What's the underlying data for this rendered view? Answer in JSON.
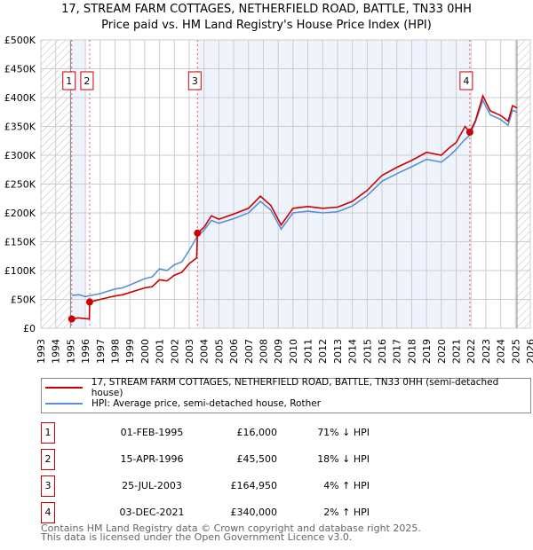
{
  "chart_data": {
    "type": "line",
    "title": "17, STREAM FARM COTTAGES, NETHERFIELD ROAD, BATTLE, TN33 0HH",
    "subtitle": "Price paid vs. HM Land Registry's House Price Index (HPI)",
    "xlim": [
      1993,
      2026
    ],
    "ylim": [
      0,
      500000
    ],
    "y_ticks": [
      0,
      50000,
      100000,
      150000,
      200000,
      250000,
      300000,
      350000,
      400000,
      450000,
      500000
    ],
    "y_tick_labels": [
      "£0",
      "£50K",
      "£100K",
      "£150K",
      "£200K",
      "£250K",
      "£300K",
      "£350K",
      "£400K",
      "£450K",
      "£500K"
    ],
    "x_ticks": [
      1993,
      1994,
      1995,
      1996,
      1997,
      1998,
      1999,
      2000,
      2001,
      2002,
      2003,
      2004,
      2005,
      2006,
      2007,
      2008,
      2009,
      2010,
      2011,
      2012,
      2013,
      2014,
      2015,
      2016,
      2017,
      2018,
      2019,
      2020,
      2021,
      2022,
      2023,
      2024,
      2025,
      2026
    ],
    "grid": true,
    "colors": {
      "property": "#cc0000",
      "hpi": "#5b8fd4",
      "shade": "#eef3fc"
    },
    "series": [
      {
        "name": "17, STREAM FARM COTTAGES, NETHERFIELD ROAD, BATTLE, TN33 0HH (semi-detached house)",
        "key": "property",
        "points": [
          [
            1995.08,
            16000
          ],
          [
            1995.5,
            18000
          ],
          [
            1996.27,
            16000
          ],
          [
            1996.29,
            45500
          ],
          [
            1997,
            50000
          ],
          [
            1998,
            56000
          ],
          [
            1998.5,
            58000
          ],
          [
            1999,
            62000
          ],
          [
            2000,
            70000
          ],
          [
            2000.5,
            72000
          ],
          [
            2001,
            84000
          ],
          [
            2001.5,
            82000
          ],
          [
            2002,
            92000
          ],
          [
            2002.5,
            97000
          ],
          [
            2003,
            112000
          ],
          [
            2003.5,
            122000
          ],
          [
            2003.56,
            164950
          ],
          [
            2004,
            175000
          ],
          [
            2004.5,
            195000
          ],
          [
            2005,
            189000
          ],
          [
            2006,
            198000
          ],
          [
            2007,
            208000
          ],
          [
            2007.8,
            229000
          ],
          [
            2008.5,
            213000
          ],
          [
            2009.2,
            179000
          ],
          [
            2010,
            208000
          ],
          [
            2011,
            211000
          ],
          [
            2012,
            208000
          ],
          [
            2013,
            210000
          ],
          [
            2014,
            220000
          ],
          [
            2015,
            239000
          ],
          [
            2016,
            265000
          ],
          [
            2017,
            279000
          ],
          [
            2018,
            291000
          ],
          [
            2019,
            305000
          ],
          [
            2020,
            300000
          ],
          [
            2020.5,
            312000
          ],
          [
            2021,
            322000
          ],
          [
            2021.6,
            350000
          ],
          [
            2021.92,
            340000
          ],
          [
            2022.3,
            360000
          ],
          [
            2022.8,
            403000
          ],
          [
            2023.3,
            377000
          ],
          [
            2024,
            369000
          ],
          [
            2024.5,
            359000
          ],
          [
            2024.8,
            386000
          ],
          [
            2025.1,
            382000
          ]
        ]
      },
      {
        "name": "HPI: Average price, semi-detached house, Rother",
        "key": "hpi",
        "points": [
          [
            1995.08,
            57000
          ],
          [
            1995.6,
            58000
          ],
          [
            1996,
            55000
          ],
          [
            1997,
            60000
          ],
          [
            1998,
            68000
          ],
          [
            1998.5,
            70000
          ],
          [
            1999,
            75000
          ],
          [
            2000,
            86000
          ],
          [
            2000.5,
            89000
          ],
          [
            2001,
            103000
          ],
          [
            2001.5,
            100000
          ],
          [
            2002,
            110000
          ],
          [
            2002.5,
            115000
          ],
          [
            2003,
            135000
          ],
          [
            2003.56,
            160000
          ],
          [
            2004,
            170000
          ],
          [
            2004.5,
            187000
          ],
          [
            2005,
            182000
          ],
          [
            2006,
            190000
          ],
          [
            2007,
            200000
          ],
          [
            2007.8,
            220000
          ],
          [
            2008.5,
            205000
          ],
          [
            2009.2,
            172000
          ],
          [
            2010,
            200000
          ],
          [
            2011,
            203000
          ],
          [
            2012,
            200000
          ],
          [
            2013,
            202000
          ],
          [
            2014,
            212000
          ],
          [
            2015,
            230000
          ],
          [
            2016,
            255000
          ],
          [
            2017,
            268000
          ],
          [
            2018,
            280000
          ],
          [
            2019,
            293000
          ],
          [
            2020,
            288000
          ],
          [
            2020.5,
            298000
          ],
          [
            2021,
            310000
          ],
          [
            2021.5,
            325000
          ],
          [
            2021.92,
            335000
          ],
          [
            2022.3,
            358000
          ],
          [
            2022.8,
            395000
          ],
          [
            2023.3,
            370000
          ],
          [
            2024,
            362000
          ],
          [
            2024.5,
            352000
          ],
          [
            2024.8,
            378000
          ],
          [
            2025.1,
            375000
          ]
        ]
      }
    ],
    "sales": [
      {
        "label": "1",
        "x": 1995.08,
        "y": 16000
      },
      {
        "label": "2",
        "x": 1996.29,
        "y": 45500
      },
      {
        "label": "3",
        "x": 2003.56,
        "y": 164950
      },
      {
        "label": "4",
        "x": 2021.92,
        "y": 340000
      }
    ],
    "shaded": [
      [
        1995.08,
        1996.0
      ],
      [
        2003.56,
        2021.92
      ]
    ],
    "hatched": [
      [
        1993,
        1995.0
      ],
      [
        2025.1,
        2026
      ]
    ]
  },
  "title_line1": "17, STREAM FARM COTTAGES, NETHERFIELD ROAD, BATTLE, TN33 0HH",
  "title_line2": "Price paid vs. HM Land Registry's House Price Index (HPI)",
  "legend": {
    "property": "17, STREAM FARM COTTAGES, NETHERFIELD ROAD, BATTLE, TN33 0HH (semi-detached house)",
    "hpi": "HPI: Average price, semi-detached house, Rother"
  },
  "table": [
    {
      "num": "1",
      "date": "01-FEB-1995",
      "price": "£16,000",
      "hpi": "71% ↓ HPI"
    },
    {
      "num": "2",
      "date": "15-APR-1996",
      "price": "£45,500",
      "hpi": "18% ↓ HPI"
    },
    {
      "num": "3",
      "date": "25-JUL-2003",
      "price": "£164,950",
      "hpi": "4% ↑ HPI"
    },
    {
      "num": "4",
      "date": "03-DEC-2021",
      "price": "£340,000",
      "hpi": "2% ↑ HPI"
    }
  ],
  "footer": {
    "line1": "Contains HM Land Registry data © Crown copyright and database right 2025.",
    "line2": "This data is licensed under the Open Government Licence v3.0."
  }
}
